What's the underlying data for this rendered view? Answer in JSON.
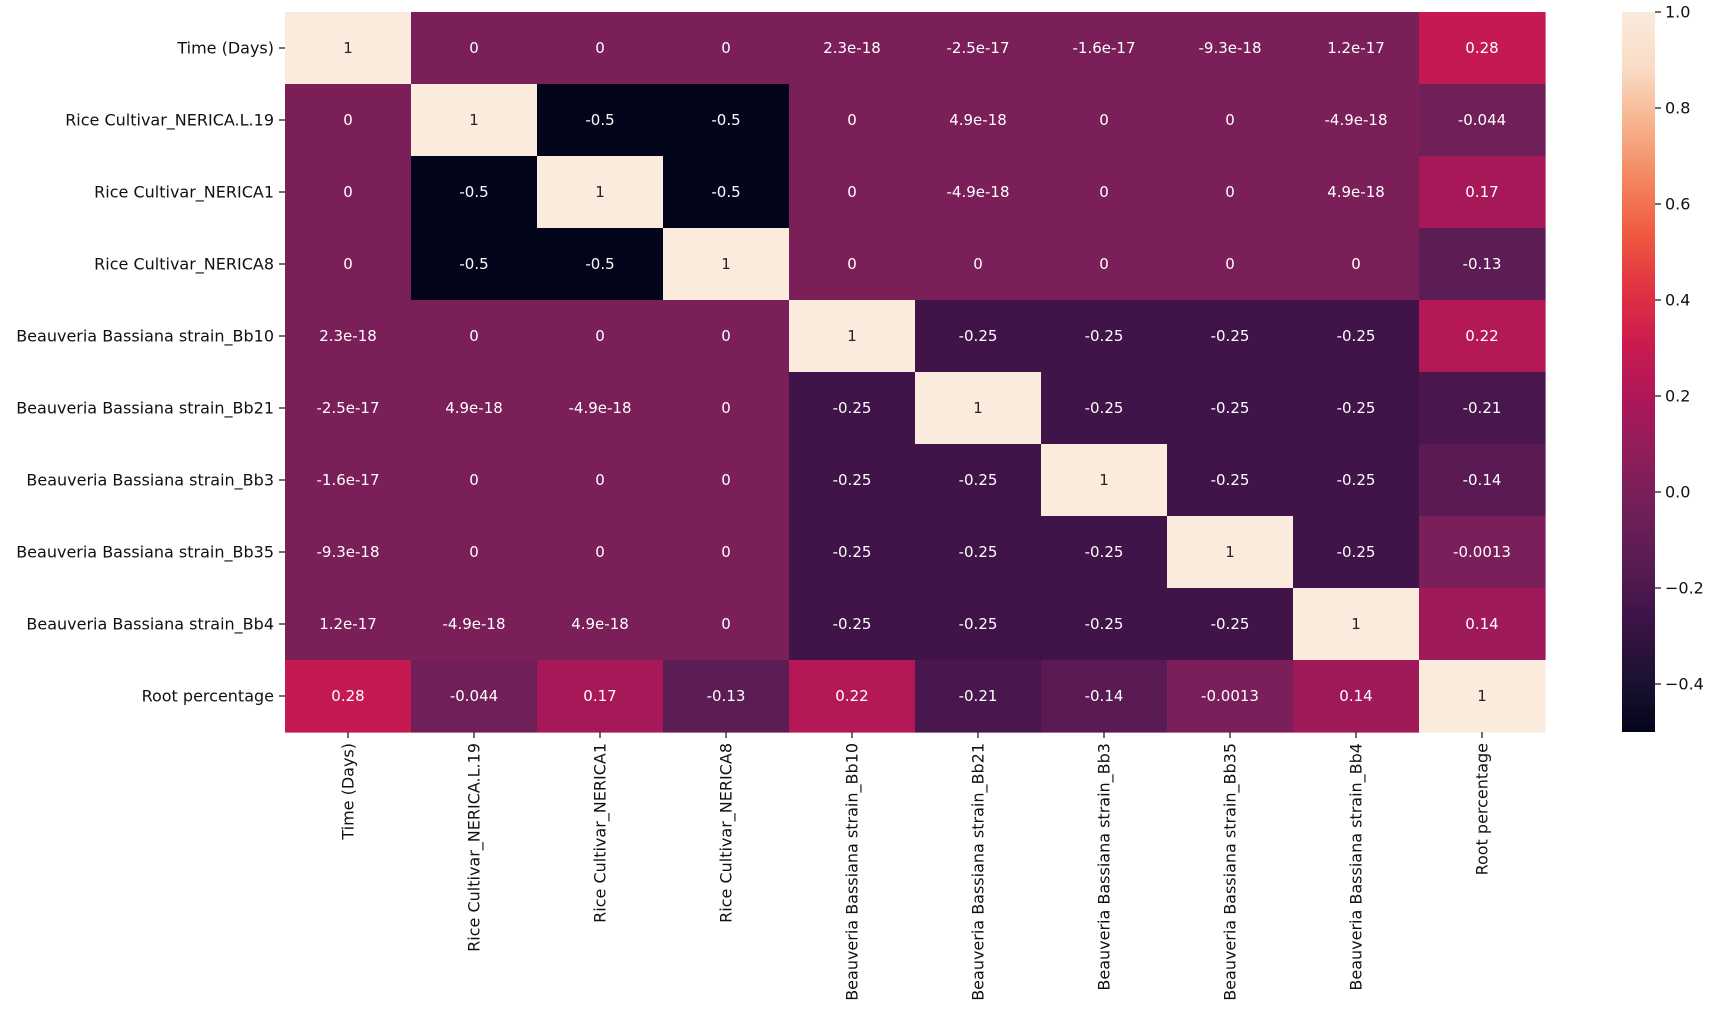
{
  "chart_data": {
    "type": "heatmap",
    "title": "",
    "xlabel": "",
    "ylabel": "",
    "rows": [
      "Time (Days)",
      "Rice Cultivar_NERICA.L.19",
      "Rice Cultivar_NERICA1",
      "Rice Cultivar_NERICA8",
      "Beauveria Bassiana strain_Bb10",
      "Beauveria Bassiana strain_Bb21",
      "Beauveria Bassiana strain_Bb3",
      "Beauveria Bassiana strain_Bb35",
      "Beauveria Bassiana strain_Bb4",
      "Root percentage"
    ],
    "columns": [
      "Time (Days)",
      "Rice Cultivar_NERICA.L.19",
      "Rice Cultivar_NERICA1",
      "Rice Cultivar_NERICA8",
      "Beauveria Bassiana strain_Bb10",
      "Beauveria Bassiana strain_Bb21",
      "Beauveria Bassiana strain_Bb3",
      "Beauveria Bassiana strain_Bb35",
      "Beauveria Bassiana strain_Bb4",
      "Root percentage"
    ],
    "values": [
      [
        1,
        0,
        0,
        0,
        2.3e-18,
        -2.5e-17,
        -1.6e-17,
        -9.3e-18,
        1.2e-17,
        0.28
      ],
      [
        0,
        1,
        -0.5,
        -0.5,
        0,
        4.9e-18,
        0,
        0,
        -4.9e-18,
        -0.044
      ],
      [
        0,
        -0.5,
        1,
        -0.5,
        0,
        -4.9e-18,
        0,
        0,
        4.9e-18,
        0.17
      ],
      [
        0,
        -0.5,
        -0.5,
        1,
        0,
        0,
        0,
        0,
        0,
        -0.13
      ],
      [
        2.3e-18,
        0,
        0,
        0,
        1,
        -0.25,
        -0.25,
        -0.25,
        -0.25,
        0.22
      ],
      [
        -2.5e-17,
        4.9e-18,
        -4.9e-18,
        0,
        -0.25,
        1,
        -0.25,
        -0.25,
        -0.25,
        -0.21
      ],
      [
        -1.6e-17,
        0,
        0,
        0,
        -0.25,
        -0.25,
        1,
        -0.25,
        -0.25,
        -0.14
      ],
      [
        -9.3e-18,
        0,
        0,
        0,
        -0.25,
        -0.25,
        -0.25,
        1,
        -0.25,
        -0.0013
      ],
      [
        1.2e-17,
        -4.9e-18,
        4.9e-18,
        0,
        -0.25,
        -0.25,
        -0.25,
        -0.25,
        1,
        0.14
      ],
      [
        0.28,
        -0.044,
        0.17,
        -0.13,
        0.22,
        -0.21,
        -0.14,
        -0.0013,
        0.14,
        1
      ]
    ],
    "annotations": [
      [
        "1",
        "0",
        "0",
        "0",
        "2.3e-18",
        "-2.5e-17",
        "-1.6e-17",
        "-9.3e-18",
        "1.2e-17",
        "0.28"
      ],
      [
        "0",
        "1",
        "-0.5",
        "-0.5",
        "0",
        "4.9e-18",
        "0",
        "0",
        "-4.9e-18",
        "-0.044"
      ],
      [
        "0",
        "-0.5",
        "1",
        "-0.5",
        "0",
        "-4.9e-18",
        "0",
        "0",
        "4.9e-18",
        "0.17"
      ],
      [
        "0",
        "-0.5",
        "-0.5",
        "1",
        "0",
        "0",
        "0",
        "0",
        "0",
        "-0.13"
      ],
      [
        "2.3e-18",
        "0",
        "0",
        "0",
        "1",
        "-0.25",
        "-0.25",
        "-0.25",
        "-0.25",
        "0.22"
      ],
      [
        "-2.5e-17",
        "4.9e-18",
        "-4.9e-18",
        "0",
        "-0.25",
        "1",
        "-0.25",
        "-0.25",
        "-0.25",
        "-0.21"
      ],
      [
        "-1.6e-17",
        "0",
        "0",
        "0",
        "-0.25",
        "-0.25",
        "1",
        "-0.25",
        "-0.25",
        "-0.14"
      ],
      [
        "-9.3e-18",
        "0",
        "0",
        "0",
        "-0.25",
        "-0.25",
        "-0.25",
        "1",
        "-0.25",
        "-0.0013"
      ],
      [
        "1.2e-17",
        "-4.9e-18",
        "4.9e-18",
        "0",
        "-0.25",
        "-0.25",
        "-0.25",
        "-0.25",
        "1",
        "0.14"
      ],
      [
        "0.28",
        "-0.044",
        "0.17",
        "-0.13",
        "0.22",
        "-0.21",
        "-0.14",
        "-0.0013",
        "0.14",
        "1"
      ]
    ],
    "colorbar": {
      "range": [
        -0.5,
        1.0
      ],
      "ticks": [
        1.0,
        0.8,
        0.6,
        0.4,
        0.2,
        0.0,
        -0.2,
        -0.4
      ],
      "tick_labels": [
        "1.0",
        "0.8",
        "0.6",
        "0.4",
        "0.2",
        "0.0",
        "−0.2",
        "−0.4"
      ],
      "colormap": "rocket",
      "color_stops": [
        "#03051a",
        "#1d1232",
        "#3b1346",
        "#571b53",
        "#711f58",
        "#8e1e5a",
        "#ad1759",
        "#cb1b4f",
        "#e13342",
        "#ef5a41",
        "#f4875f",
        "#f6b48e",
        "#f9dcc4",
        "#faebdd"
      ]
    },
    "grid": false,
    "legend": "colorbar-right"
  }
}
